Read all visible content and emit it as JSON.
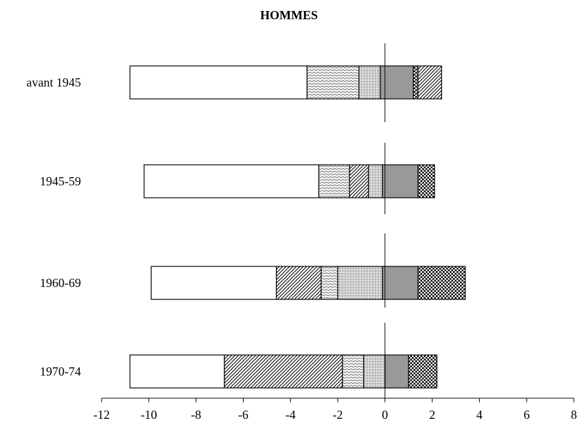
{
  "chart_data": {
    "type": "bar",
    "orientation": "horizontal",
    "stacked": true,
    "title": "HOMMES",
    "xlabel": "",
    "ylabel": "",
    "xlim": [
      -12,
      8
    ],
    "xticks": [
      -12,
      -10,
      -8,
      -6,
      -4,
      -2,
      0,
      2,
      4,
      6,
      8
    ],
    "grid": false,
    "legend": "none",
    "categories": [
      "avant 1945",
      "1945-59",
      "1960-69",
      "1970-74"
    ],
    "bars": [
      {
        "category": "avant 1945",
        "segments": [
          {
            "start": -10.8,
            "end": -3.3,
            "pattern": "white"
          },
          {
            "start": -3.3,
            "end": -1.1,
            "pattern": "wave"
          },
          {
            "start": -1.1,
            "end": -0.2,
            "pattern": "light-dots"
          },
          {
            "start": -0.2,
            "end": 1.2,
            "pattern": "gray"
          },
          {
            "start": 1.2,
            "end": 1.4,
            "pattern": "checker"
          },
          {
            "start": 1.4,
            "end": 2.4,
            "pattern": "hatch"
          }
        ]
      },
      {
        "category": "1945-59",
        "segments": [
          {
            "start": -10.2,
            "end": -2.8,
            "pattern": "white"
          },
          {
            "start": -2.8,
            "end": -1.5,
            "pattern": "wave"
          },
          {
            "start": -1.5,
            "end": -0.7,
            "pattern": "hatch"
          },
          {
            "start": -0.7,
            "end": -0.1,
            "pattern": "light-dots"
          },
          {
            "start": -0.1,
            "end": 1.4,
            "pattern": "gray"
          },
          {
            "start": 1.4,
            "end": 2.1,
            "pattern": "checker"
          }
        ]
      },
      {
        "category": "1960-69",
        "segments": [
          {
            "start": -9.9,
            "end": -4.6,
            "pattern": "white"
          },
          {
            "start": -4.6,
            "end": -2.7,
            "pattern": "hatch"
          },
          {
            "start": -2.7,
            "end": -2.0,
            "pattern": "wave"
          },
          {
            "start": -2.0,
            "end": -0.1,
            "pattern": "light-dots"
          },
          {
            "start": -0.1,
            "end": 1.4,
            "pattern": "gray"
          },
          {
            "start": 1.4,
            "end": 3.4,
            "pattern": "checker"
          }
        ]
      },
      {
        "category": "1970-74",
        "segments": [
          {
            "start": -10.8,
            "end": -6.8,
            "pattern": "white"
          },
          {
            "start": -6.8,
            "end": -1.8,
            "pattern": "hatch"
          },
          {
            "start": -1.8,
            "end": -0.9,
            "pattern": "wave"
          },
          {
            "start": -0.9,
            "end": 0.0,
            "pattern": "light-dots"
          },
          {
            "start": 0.0,
            "end": 1.0,
            "pattern": "gray"
          },
          {
            "start": 1.0,
            "end": 2.2,
            "pattern": "checker"
          }
        ]
      }
    ]
  }
}
